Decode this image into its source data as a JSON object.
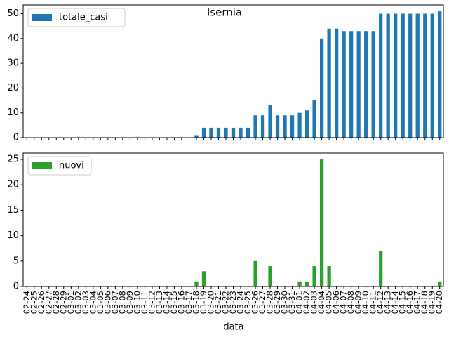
{
  "chart_data": [
    {
      "type": "bar",
      "title": "Isernia",
      "categories": [
        "02-24",
        "02-25",
        "02-26",
        "02-27",
        "02-28",
        "02-29",
        "03-01",
        "03-02",
        "03-03",
        "03-04",
        "03-05",
        "03-06",
        "03-07",
        "03-08",
        "03-09",
        "03-10",
        "03-11",
        "03-12",
        "03-13",
        "03-14",
        "03-15",
        "03-16",
        "03-17",
        "03-18",
        "03-19",
        "03-20",
        "03-21",
        "03-22",
        "03-23",
        "03-24",
        "03-25",
        "03-26",
        "03-27",
        "03-28",
        "03-29",
        "03-30",
        "03-31",
        "04-01",
        "04-02",
        "04-03",
        "04-04",
        "04-05",
        "04-06",
        "04-07",
        "04-08",
        "04-09",
        "04-10",
        "04-11",
        "04-12",
        "04-13",
        "04-14",
        "04-15",
        "04-16",
        "04-17",
        "04-18",
        "04-19",
        "04-20"
      ],
      "series": [
        {
          "name": "totale_casi",
          "color": "#1f77b4",
          "values": [
            0,
            0,
            0,
            0,
            0,
            0,
            0,
            0,
            0,
            0,
            0,
            0,
            0,
            0,
            0,
            0,
            0,
            0,
            0,
            0,
            0,
            0,
            0,
            1,
            4,
            4,
            4,
            4,
            4,
            4,
            4,
            9,
            9,
            13,
            9,
            9,
            9,
            10,
            11,
            15,
            40,
            44,
            44,
            43,
            43,
            43,
            43,
            43,
            50,
            50,
            50,
            50,
            50,
            50,
            50,
            50,
            51
          ]
        }
      ],
      "ylim": [
        0,
        53.55
      ],
      "yticks": [
        0,
        10,
        20,
        30,
        40,
        50
      ],
      "legend": "upper left"
    },
    {
      "type": "bar",
      "xlabel": "data",
      "series": [
        {
          "name": "nuovi",
          "color": "#2ca02c",
          "values": [
            0,
            0,
            0,
            0,
            0,
            0,
            0,
            0,
            0,
            0,
            0,
            0,
            0,
            0,
            0,
            0,
            0,
            0,
            0,
            0,
            0,
            0,
            0,
            1,
            3,
            0,
            0,
            0,
            0,
            0,
            0,
            5,
            0,
            4,
            0,
            0,
            0,
            1,
            1,
            4,
            25,
            4,
            0,
            0,
            0,
            0,
            0,
            0,
            7,
            0,
            0,
            0,
            0,
            0,
            0,
            0,
            1
          ]
        }
      ],
      "ylim": [
        0,
        26.25
      ],
      "yticks": [
        0,
        5,
        10,
        15,
        20,
        25
      ],
      "legend": "upper left"
    }
  ]
}
